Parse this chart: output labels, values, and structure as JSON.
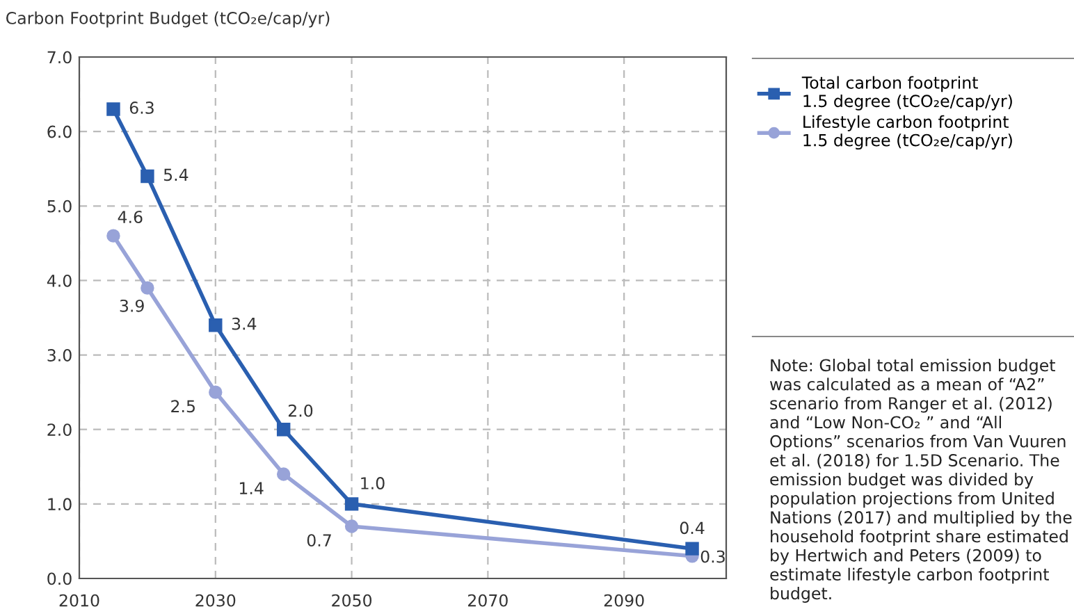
{
  "chart_data": {
    "type": "line",
    "ylabel": "Carbon Footprint Budget (tCO₂e/cap/yr)",
    "x": [
      2015,
      2020,
      2030,
      2040,
      2050,
      2100
    ],
    "series": [
      {
        "name": "Total carbon footprint\n1.5 degree (tCO₂e/cap/yr)",
        "color": "#2a5fb0",
        "marker": "square",
        "values": [
          6.3,
          5.4,
          3.4,
          2.0,
          1.0,
          0.4
        ],
        "value_labels": [
          "6.3",
          "5.4",
          "3.4",
          "2.0",
          "1.0",
          "0.4"
        ]
      },
      {
        "name": "Lifestyle carbon footprint\n1.5 degree (tCO₂e/cap/yr)",
        "color": "#98a3d8",
        "marker": "circle",
        "values": [
          4.6,
          3.9,
          2.5,
          1.4,
          0.7,
          0.3
        ],
        "value_labels": [
          "4.6",
          "3.9",
          "2.5",
          "1.4",
          "0.7",
          "0.3"
        ]
      }
    ],
    "xlim": [
      2010,
      2105
    ],
    "xticks": [
      2010,
      2030,
      2050,
      2070,
      2090
    ],
    "ylim": [
      0,
      7
    ],
    "yticks": [
      {
        "value": 0,
        "label": "0.0"
      },
      {
        "value": 1,
        "label": "1.0"
      },
      {
        "value": 2,
        "label": "2.0"
      },
      {
        "value": 3,
        "label": "3.0"
      },
      {
        "value": 4,
        "label": "4.0"
      },
      {
        "value": 5,
        "label": "5.0"
      },
      {
        "value": 6,
        "label": "6.0"
      },
      {
        "value": 7,
        "label": "7.0"
      }
    ],
    "grid": true,
    "legend": "right",
    "line_style": "solid",
    "annotations": [
      "Note: Global total emission budget was calculated as a mean of “A2” scenario from Ranger et al. (2012) and “Low Non-CO₂ ” and “All Options” scenarios from Van Vuuren et al. (2018) for 1.5D Scenario. The emission budget was divided by population projections from United Nations (2017) and multiplied by the household footprint share estimated by Hertwich and Peters (2009) to estimate lifestyle carbon footprint budget."
    ]
  }
}
